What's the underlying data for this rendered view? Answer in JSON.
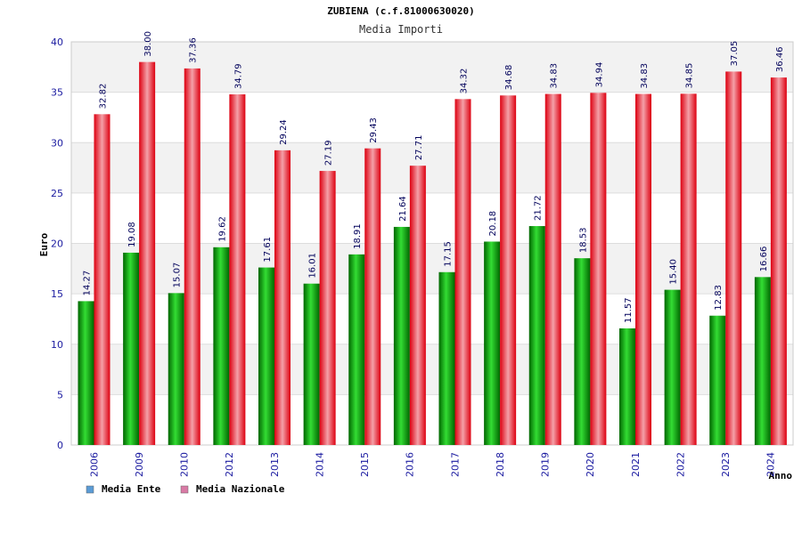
{
  "chart_data": {
    "type": "bar",
    "title": "ZUBIENA (c.f.81000630020)",
    "subtitle": "Media Importi",
    "ylabel": "Euro",
    "xlabel": "Anno",
    "ylim": [
      0,
      40
    ],
    "yticks": [
      0,
      5,
      10,
      15,
      20,
      25,
      30,
      35,
      40
    ],
    "grid": true,
    "legend_position": "bottom-left",
    "categories": [
      "2006",
      "2009",
      "2010",
      "2012",
      "2013",
      "2014",
      "2015",
      "2016",
      "2017",
      "2018",
      "2019",
      "2020",
      "2021",
      "2022",
      "2023",
      "2024"
    ],
    "series": [
      {
        "name": "Media Ente",
        "color": "#00aa00",
        "legend_color": "#5b9bd5",
        "values": [
          14.27,
          19.08,
          15.07,
          19.62,
          17.61,
          16.01,
          18.91,
          21.64,
          17.15,
          20.18,
          21.72,
          18.53,
          11.57,
          15.4,
          12.83,
          16.66
        ],
        "labels": [
          "14.27",
          "19.08",
          "15.07",
          "19.62",
          "17.61",
          "16.01",
          "18.91",
          "21.64",
          "17.15",
          "20.18",
          "21.72",
          "18.53",
          "11.57",
          "15.40",
          "12.83",
          "16.66"
        ]
      },
      {
        "name": "Media Nazionale",
        "color": "#e8141e",
        "legend_color": "#d97aa5",
        "values": [
          32.82,
          38.0,
          37.36,
          34.79,
          29.24,
          27.19,
          29.43,
          27.71,
          34.32,
          34.68,
          34.83,
          34.94,
          34.83,
          34.85,
          37.05,
          36.46
        ],
        "labels": [
          "32.82",
          "38.00",
          "37.36",
          "34.79",
          "29.24",
          "27.19",
          "29.43",
          "27.71",
          "34.32",
          "34.68",
          "34.83",
          "34.94",
          "34.83",
          "34.85",
          "37.05",
          "36.46"
        ]
      }
    ]
  }
}
